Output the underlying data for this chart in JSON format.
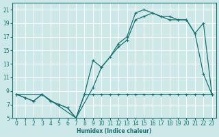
{
  "xlabel": "Humidex (Indice chaleur)",
  "bg_color": "#cce8e8",
  "grid_color": "#ffffff",
  "line_color": "#1a7070",
  "xlim": [
    -0.5,
    23.5
  ],
  "ylim": [
    5,
    22
  ],
  "xticks": [
    0,
    1,
    2,
    3,
    4,
    5,
    6,
    7,
    8,
    9,
    10,
    11,
    12,
    13,
    14,
    15,
    16,
    17,
    18,
    19,
    20,
    21,
    22,
    23
  ],
  "yticks": [
    5,
    7,
    9,
    11,
    13,
    15,
    17,
    19,
    21
  ],
  "line1_x": [
    0,
    1,
    2,
    3,
    4,
    5,
    6,
    7,
    8,
    9,
    10,
    11,
    12,
    13,
    14,
    15,
    16,
    17,
    18,
    19,
    20,
    21,
    22,
    23
  ],
  "line1_y": [
    8.5,
    8.0,
    7.5,
    8.5,
    7.5,
    7.0,
    6.5,
    5.0,
    8.5,
    13.5,
    12.5,
    14.0,
    16.0,
    17.0,
    20.5,
    21.0,
    20.5,
    20.0,
    20.0,
    19.5,
    19.5,
    17.5,
    11.5,
    8.5
  ],
  "line2_x": [
    0,
    3,
    7,
    9,
    10,
    12,
    13,
    14,
    15,
    16,
    17,
    18,
    19,
    20,
    21,
    22,
    23
  ],
  "line2_y": [
    8.5,
    8.5,
    5.0,
    9.5,
    12.5,
    15.5,
    16.5,
    19.5,
    20.0,
    20.5,
    20.0,
    19.5,
    19.5,
    19.5,
    17.5,
    19.0,
    8.5
  ],
  "line3_x": [
    0,
    1,
    2,
    3,
    4,
    5,
    6,
    7,
    8,
    9,
    10,
    11,
    12,
    13,
    14,
    15,
    16,
    17,
    18,
    19,
    20,
    21,
    22,
    23
  ],
  "line3_y": [
    8.5,
    8.0,
    7.5,
    8.5,
    7.5,
    7.0,
    6.5,
    5.0,
    8.5,
    8.5,
    8.5,
    8.5,
    8.5,
    8.5,
    8.5,
    8.5,
    8.5,
    8.5,
    8.5,
    8.5,
    8.5,
    8.5,
    8.5,
    8.5
  ]
}
